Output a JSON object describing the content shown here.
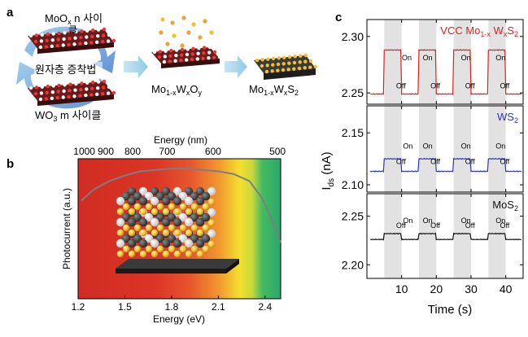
{
  "panel_letters": {
    "a": "a",
    "b": "b",
    "c": "c"
  },
  "panel_a": {
    "moo_prefix": "MoO",
    "moo_sub": "x",
    "moo_suffix": " n 사이",
    "moo_wrap": "클",
    "center_label": "원자층 증착법",
    "wo_prefix": "WO",
    "wo_sub": "3",
    "wo_suffix": " m 사이클",
    "intermediate": {
      "a": "Mo",
      "b": "1-x",
      "c": "W",
      "d": "x",
      "e": "O",
      "f": "y"
    },
    "final": {
      "a": "Mo",
      "b": "1-x",
      "c": "W",
      "d": "x",
      "e": "S",
      "f": "2"
    },
    "colors": {
      "arrow": "#9fd2ea",
      "cycle": "#5b8fd6",
      "oxygen": "#c62828",
      "metal": "#444444",
      "sulfur": "#f2c12e"
    }
  },
  "panel_b": {
    "top_axis_label": "Energy (nm)",
    "top_ticks": [
      "1000",
      "900",
      "800",
      "700",
      "600",
      "500"
    ],
    "bottom_ticks": [
      "1.2",
      "1.5",
      "1.8",
      "2.1",
      "2.4"
    ],
    "xlabel": "Energy (eV)",
    "ylabel": "Photocurrent (a.u.)",
    "curve": [
      [
        1.22,
        0.7
      ],
      [
        1.3,
        0.78
      ],
      [
        1.4,
        0.84
      ],
      [
        1.5,
        0.88
      ],
      [
        1.6,
        0.91
      ],
      [
        1.7,
        0.92
      ],
      [
        1.8,
        0.93
      ],
      [
        1.9,
        0.93
      ],
      [
        2.0,
        0.92
      ],
      [
        2.1,
        0.91
      ],
      [
        2.2,
        0.89
      ],
      [
        2.3,
        0.84
      ],
      [
        2.38,
        0.72
      ],
      [
        2.45,
        0.55
      ],
      [
        2.5,
        0.4
      ]
    ],
    "xlim": [
      1.2,
      2.5
    ],
    "colors": {
      "red": "#d83a2c",
      "yellow": "#f4e12e",
      "green": "#2db36b",
      "curve": "#7d7d86"
    }
  },
  "panel_c": {
    "ylabel_main": "I",
    "ylabel_sub": "ds",
    "ylabel_unit": " (nA)",
    "xlabel": "Time (s)",
    "xticks": [
      10,
      20,
      30,
      40
    ],
    "xlim": [
      0,
      45
    ],
    "gray_bands": [
      [
        5,
        10
      ],
      [
        15,
        20
      ],
      [
        25,
        30
      ],
      [
        35,
        40
      ]
    ],
    "on_label": "On",
    "off_label": "Off",
    "subplots": [
      {
        "label_parts": {
          "a": "VCC Mo",
          "b": "1-x",
          "c": " W",
          "d": "x",
          "e": "S",
          "f": "2"
        },
        "color": "#e02020",
        "ylim": [
          2.24,
          2.315
        ],
        "yticks": [
          "2.30",
          "2.25"
        ],
        "ytick_values": [
          2.3,
          2.25
        ],
        "low": 2.249,
        "high": 2.288,
        "labels": [
          [
            11.5,
            2.279,
            "On"
          ],
          [
            9.8,
            2.254,
            "Off"
          ],
          [
            17.5,
            2.279,
            "On"
          ],
          [
            19.7,
            2.254,
            "Off"
          ],
          [
            28.5,
            2.279,
            "On"
          ],
          [
            29.7,
            2.254,
            "Off"
          ],
          [
            38.5,
            2.279,
            "On"
          ],
          [
            39.7,
            2.254,
            "Off"
          ]
        ]
      },
      {
        "label_parts": {
          "a": "WS",
          "b": "",
          "c": "",
          "d": "",
          "e": "",
          "f": "2"
        },
        "color": "#2a35c8",
        "ylim": [
          2.093,
          2.176
        ],
        "yticks": [
          "2.15",
          "2.10"
        ],
        "ytick_values": [
          2.15,
          2.1
        ],
        "low": 2.113,
        "high": 2.125,
        "labels": [
          [
            11.8,
            2.135,
            "On"
          ],
          [
            9.8,
            2.12,
            "Off"
          ],
          [
            17.5,
            2.135,
            "On"
          ],
          [
            19.7,
            2.12,
            "Off"
          ],
          [
            28.5,
            2.135,
            "On"
          ],
          [
            29.7,
            2.12,
            "Off"
          ],
          [
            38.5,
            2.135,
            "On"
          ],
          [
            39.7,
            2.12,
            "Off"
          ]
        ]
      },
      {
        "label_parts": {
          "a": "MoS",
          "b": "",
          "c": "",
          "d": "",
          "e": "",
          "f": "2"
        },
        "color": "#111111",
        "ylim": [
          2.186,
          2.273
        ],
        "yticks": [
          "2.25",
          "2.20"
        ],
        "ytick_values": [
          2.25,
          2.2
        ],
        "low": 2.226,
        "high": 2.232,
        "labels": [
          [
            11.8,
            2.243,
            "On"
          ],
          [
            9.8,
            2.238,
            "Off"
          ],
          [
            17.5,
            2.243,
            "On"
          ],
          [
            19.7,
            2.238,
            "Off"
          ],
          [
            28.5,
            2.243,
            "On"
          ],
          [
            29.7,
            2.238,
            "Off"
          ],
          [
            38.5,
            2.243,
            "On"
          ],
          [
            39.7,
            2.238,
            "Off"
          ]
        ]
      }
    ]
  }
}
